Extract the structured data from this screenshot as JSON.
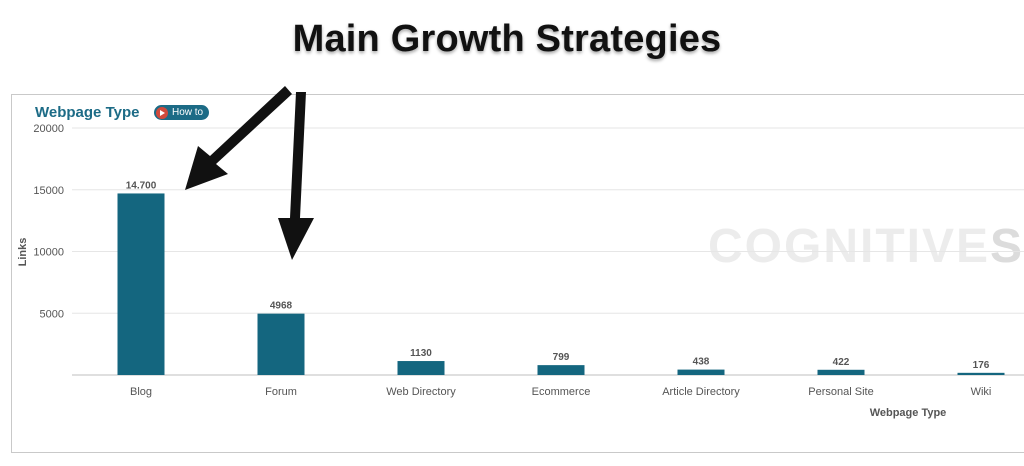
{
  "headline": "Main Growth Strategies",
  "panel": {
    "title": "Webpage Type",
    "howto_label": "How to",
    "watermark_light": "COGNITIVE",
    "watermark_bold": "SE"
  },
  "colors": {
    "bar": "#14667f",
    "title": "#1c6b86",
    "play": "#d04a3c"
  },
  "chart_data": {
    "type": "bar",
    "title": "Webpage Type",
    "xlabel": "Webpage Type",
    "ylabel": "Links",
    "ylim": [
      0,
      20000
    ],
    "yticks": [
      5000,
      10000,
      15000,
      20000
    ],
    "grid": true,
    "categories": [
      "Blog",
      "Forum",
      "Web Directory",
      "Ecommerce",
      "Article Directory",
      "Personal Site",
      "Wiki"
    ],
    "values": [
      14700,
      4968,
      1130,
      799,
      438,
      422,
      176
    ],
    "data_labels": [
      "14.700",
      "4968",
      "1130",
      "799",
      "438",
      "422",
      "176"
    ]
  }
}
